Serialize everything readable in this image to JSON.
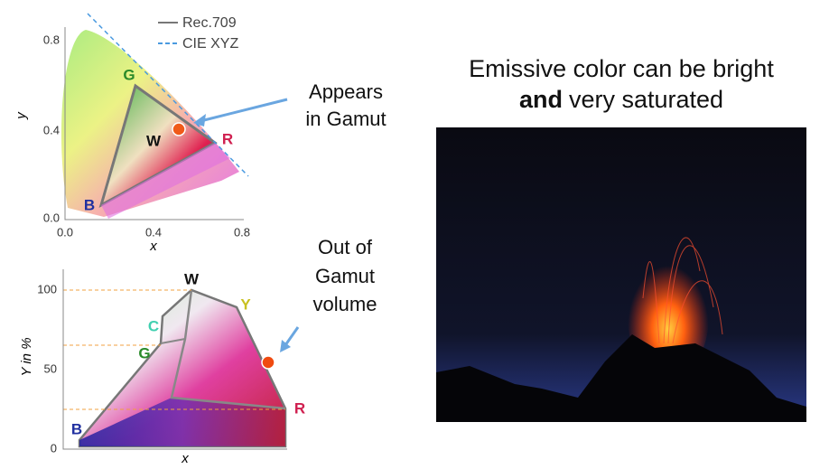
{
  "top_plot": {
    "legend": [
      "Rec.709",
      "CIE XYZ"
    ],
    "y_ticks": [
      "0.8",
      "0.4",
      "0.0"
    ],
    "x_ticks": [
      "0.0",
      "0.4",
      "0.8"
    ],
    "x_label": "x",
    "y_label": "y",
    "vertices": [
      "G",
      "W",
      "R",
      "B"
    ]
  },
  "top_callout": [
    "Appears",
    "in Gamut"
  ],
  "bottom_plot": {
    "y_ticks": [
      "100",
      "50",
      "0"
    ],
    "y_label": "Y in %",
    "x_label": "x",
    "vertices": [
      "W",
      "Y",
      "C",
      "G",
      "R",
      "B"
    ]
  },
  "bottom_callout": [
    "Out of",
    "Gamut",
    "volume"
  ],
  "headline": {
    "line1": "Emissive color can be bright",
    "line2_bold": "and",
    "line2_rest": "very saturated"
  }
}
